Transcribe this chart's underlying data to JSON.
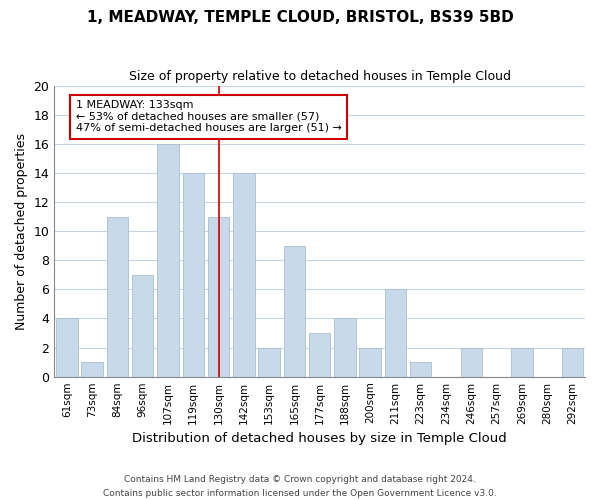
{
  "title": "1, MEADWAY, TEMPLE CLOUD, BRISTOL, BS39 5BD",
  "subtitle": "Size of property relative to detached houses in Temple Cloud",
  "xlabel": "Distribution of detached houses by size in Temple Cloud",
  "ylabel": "Number of detached properties",
  "bin_labels": [
    "61sqm",
    "73sqm",
    "84sqm",
    "96sqm",
    "107sqm",
    "119sqm",
    "130sqm",
    "142sqm",
    "153sqm",
    "165sqm",
    "177sqm",
    "188sqm",
    "200sqm",
    "211sqm",
    "223sqm",
    "234sqm",
    "246sqm",
    "257sqm",
    "269sqm",
    "280sqm",
    "292sqm"
  ],
  "bar_heights": [
    4,
    1,
    11,
    7,
    16,
    14,
    11,
    14,
    2,
    9,
    3,
    4,
    2,
    6,
    1,
    0,
    2,
    0,
    2,
    0,
    2
  ],
  "bar_color": "#c8d9ea",
  "bar_edge_color": "#a8bfd0",
  "grid_color": "#c8d4e0",
  "bg_color": "#ffffff",
  "vline_x_index": 6,
  "vline_color": "#cc0000",
  "annotation_title": "1 MEADWAY: 133sqm",
  "annotation_line1": "← 53% of detached houses are smaller (57)",
  "annotation_line2": "47% of semi-detached houses are larger (51) →",
  "annotation_box_color": "#ffffff",
  "annotation_box_edge": "#cc0000",
  "ylim": [
    0,
    20
  ],
  "yticks": [
    0,
    2,
    4,
    6,
    8,
    10,
    12,
    14,
    16,
    18,
    20
  ],
  "footer1": "Contains HM Land Registry data © Crown copyright and database right 2024.",
  "footer2": "Contains public sector information licensed under the Open Government Licence v3.0.",
  "bar_width": 0.85
}
